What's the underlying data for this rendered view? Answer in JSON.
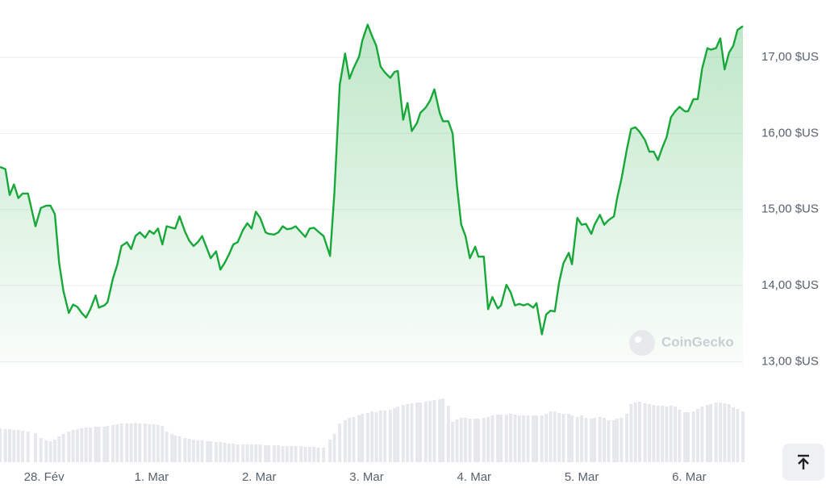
{
  "chart_data": {
    "type": "line",
    "watermark": "CoinGecko",
    "color": "#18a83a",
    "volume_color": "#e6e8eb",
    "grid": true,
    "xlim": [
      -0.41,
      6.5
    ],
    "ylim": [
      12.93,
      17.753
    ],
    "volume_lim": [
      0,
      80
    ],
    "xticks": [
      {
        "value": 0,
        "label": "28. Fév"
      },
      {
        "value": 1,
        "label": "1. Mar"
      },
      {
        "value": 2,
        "label": "2. Mar"
      },
      {
        "value": 3,
        "label": "3. Mar"
      },
      {
        "value": 4,
        "label": "4. Mar"
      },
      {
        "value": 5,
        "label": "5. Mar"
      },
      {
        "value": 6,
        "label": "6. Mar"
      }
    ],
    "yticks": [
      {
        "value": 13,
        "label": "13,00 $US"
      },
      {
        "value": 14,
        "label": "14,00 $US"
      },
      {
        "value": 15,
        "label": "15,00 $US"
      },
      {
        "value": 16,
        "label": "16,00 $US"
      },
      {
        "value": 17,
        "label": "17,00 $US"
      }
    ],
    "x": [
      -0.41,
      -0.36,
      -0.32,
      -0.28,
      -0.24,
      -0.2,
      -0.15,
      -0.08,
      -0.03,
      0.02,
      0.06,
      0.1,
      0.14,
      0.18,
      0.23,
      0.27,
      0.31,
      0.35,
      0.39,
      0.43,
      0.48,
      0.51,
      0.56,
      0.59,
      0.64,
      0.68,
      0.72,
      0.77,
      0.81,
      0.85,
      0.89,
      0.94,
      0.98,
      1.02,
      1.06,
      1.1,
      1.14,
      1.19,
      1.22,
      1.26,
      1.31,
      1.35,
      1.39,
      1.43,
      1.47,
      1.52,
      1.55,
      1.6,
      1.64,
      1.68,
      1.72,
      1.76,
      1.8,
      1.85,
      1.89,
      1.93,
      1.97,
      2.01,
      2.06,
      2.09,
      2.14,
      2.18,
      2.22,
      2.26,
      2.3,
      2.34,
      2.39,
      2.43,
      2.47,
      2.51,
      2.55,
      2.6,
      2.66,
      2.7,
      2.75,
      2.8,
      2.84,
      2.88,
      2.93,
      2.96,
      3.01,
      3.05,
      3.09,
      3.13,
      3.17,
      3.22,
      3.26,
      3.29,
      3.34,
      3.38,
      3.42,
      3.47,
      3.5,
      3.55,
      3.59,
      3.63,
      3.68,
      3.71,
      3.76,
      3.8,
      3.84,
      3.88,
      3.92,
      3.96,
      4.01,
      4.04,
      4.09,
      4.13,
      4.17,
      4.22,
      4.25,
      4.3,
      4.34,
      4.38,
      4.42,
      4.46,
      4.5,
      4.55,
      4.58,
      4.63,
      4.67,
      4.71,
      4.75,
      4.79,
      4.83,
      4.88,
      4.91,
      4.96,
      5.0,
      5.04,
      5.09,
      5.12,
      5.17,
      5.21,
      5.25,
      5.3,
      5.33,
      5.37,
      5.42,
      5.46,
      5.5,
      5.54,
      5.59,
      5.63,
      5.67,
      5.71,
      5.75,
      5.79,
      5.83,
      5.87,
      5.91,
      5.96,
      5.99,
      6.04,
      6.08,
      6.12,
      6.17,
      6.2,
      6.25,
      6.29,
      6.33,
      6.37,
      6.41,
      6.45,
      6.5
    ],
    "values": [
      15.56,
      15.53,
      15.19,
      15.33,
      15.15,
      15.21,
      15.21,
      14.78,
      15.02,
      15.05,
      15.05,
      14.94,
      14.3,
      13.93,
      13.64,
      13.75,
      13.72,
      13.64,
      13.58,
      13.69,
      13.87,
      13.71,
      13.74,
      13.78,
      14.09,
      14.27,
      14.52,
      14.57,
      14.48,
      14.65,
      14.7,
      14.63,
      14.72,
      14.68,
      14.75,
      14.54,
      14.78,
      14.76,
      14.75,
      14.91,
      14.71,
      14.59,
      14.52,
      14.57,
      14.65,
      14.47,
      14.36,
      14.45,
      14.21,
      14.3,
      14.41,
      14.54,
      14.57,
      14.73,
      14.82,
      14.75,
      14.97,
      14.89,
      14.7,
      14.68,
      14.67,
      14.7,
      14.78,
      14.74,
      14.75,
      14.78,
      14.7,
      14.64,
      14.75,
      14.76,
      14.71,
      14.65,
      14.39,
      15.21,
      16.64,
      17.05,
      16.72,
      16.86,
      17.01,
      17.22,
      17.43,
      17.28,
      17.15,
      16.88,
      16.8,
      16.73,
      16.81,
      16.82,
      16.18,
      16.4,
      16.03,
      16.14,
      16.27,
      16.34,
      16.43,
      16.58,
      16.27,
      16.16,
      16.16,
      16.0,
      15.31,
      14.8,
      14.65,
      14.36,
      14.51,
      14.38,
      14.38,
      13.69,
      13.85,
      13.7,
      13.74,
      14.01,
      13.91,
      13.74,
      13.76,
      13.74,
      13.76,
      13.71,
      13.77,
      13.36,
      13.62,
      13.67,
      13.66,
      14.04,
      14.29,
      14.43,
      14.28,
      14.89,
      14.8,
      14.81,
      14.68,
      14.8,
      14.93,
      14.8,
      14.86,
      14.91,
      15.15,
      15.4,
      15.79,
      16.06,
      16.08,
      16.02,
      15.91,
      15.76,
      15.76,
      15.65,
      15.81,
      15.95,
      16.21,
      16.29,
      16.35,
      16.29,
      16.29,
      16.45,
      16.45,
      16.85,
      17.12,
      17.1,
      17.12,
      17.25,
      16.84,
      17.06,
      17.15,
      17.36,
      17.41
    ],
    "volume": [
      42,
      41,
      41,
      40,
      40,
      39,
      38,
      36,
      30,
      27,
      26,
      28,
      32,
      35,
      38,
      40,
      41,
      42,
      43,
      43,
      44,
      44,
      44,
      45,
      46,
      47,
      48,
      48,
      48,
      49,
      48,
      48,
      47,
      47,
      46,
      45,
      38,
      35,
      33,
      32,
      30,
      29,
      28,
      27,
      27,
      26,
      26,
      25,
      25,
      24,
      23,
      23,
      22,
      22,
      22,
      22,
      22,
      22,
      21,
      21,
      21,
      21,
      20,
      20,
      20,
      20,
      20,
      19,
      19,
      19,
      18,
      18,
      28,
      35,
      48,
      52,
      55,
      56,
      58,
      60,
      61,
      63,
      62,
      64,
      64,
      65,
      67,
      69,
      71,
      72,
      73,
      74,
      74,
      75,
      76,
      77,
      78,
      79,
      70,
      50,
      53,
      55,
      55,
      54,
      54,
      54,
      55,
      56,
      58,
      59,
      59,
      59,
      60,
      59,
      58,
      58,
      58,
      58,
      58,
      58,
      60,
      63,
      63,
      61,
      60,
      60,
      58,
      56,
      58,
      55,
      54,
      55,
      56,
      55,
      52,
      52,
      54,
      55,
      60,
      72,
      74,
      75,
      73,
      72,
      71,
      70,
      70,
      69,
      70,
      69,
      65,
      62,
      62,
      63,
      66,
      69,
      71,
      72,
      74,
      74,
      73,
      72,
      68,
      66,
      63
    ]
  }
}
